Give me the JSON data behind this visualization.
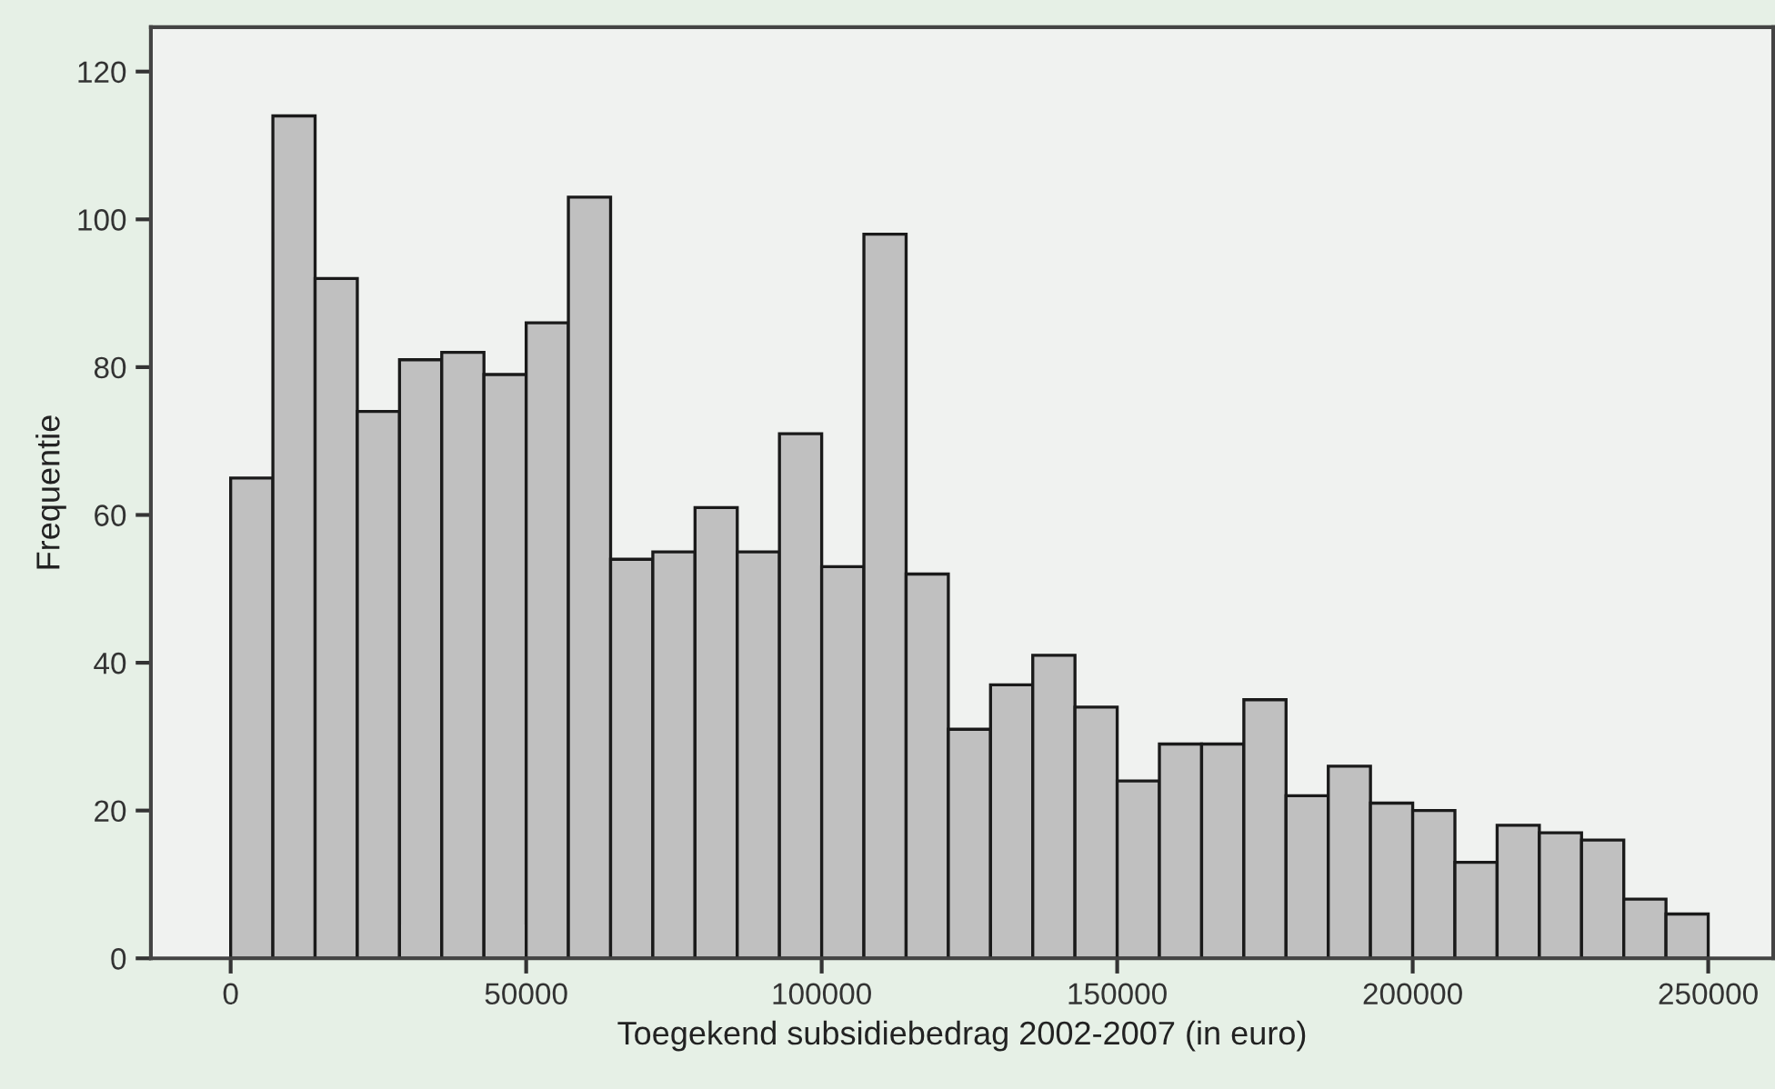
{
  "chart_data": {
    "type": "histogram",
    "xlabel": "Toegekend subsidiebedrag 2002-2007 (in euro)",
    "ylabel": "Frequentie",
    "bins": [
      0,
      7143,
      14286,
      21429,
      28571,
      35714,
      42857,
      50000,
      57143,
      64286,
      71429,
      78571,
      85714,
      92857,
      100000,
      107143,
      114286,
      121429,
      128571,
      135714,
      142857,
      150000,
      157143,
      164286,
      171429,
      178571,
      185714,
      192857,
      200000,
      207143,
      214286,
      221429,
      228571,
      235714,
      242857,
      250000
    ],
    "values": [
      65,
      114,
      92,
      74,
      81,
      82,
      79,
      86,
      103,
      54,
      55,
      61,
      55,
      71,
      53,
      98,
      52,
      31,
      37,
      41,
      34,
      24,
      29,
      29,
      35,
      22,
      26,
      21,
      20,
      13,
      18,
      17,
      16,
      8,
      6
    ],
    "color": "#c0c0c0",
    "xlim": [
      -13500,
      261000
    ],
    "xticks": [
      0,
      50000,
      100000,
      150000,
      200000,
      250000
    ],
    "ylim": [
      0,
      126
    ],
    "yticks": [
      0,
      20,
      40,
      60,
      80,
      100,
      120
    ],
    "grid": false
  }
}
